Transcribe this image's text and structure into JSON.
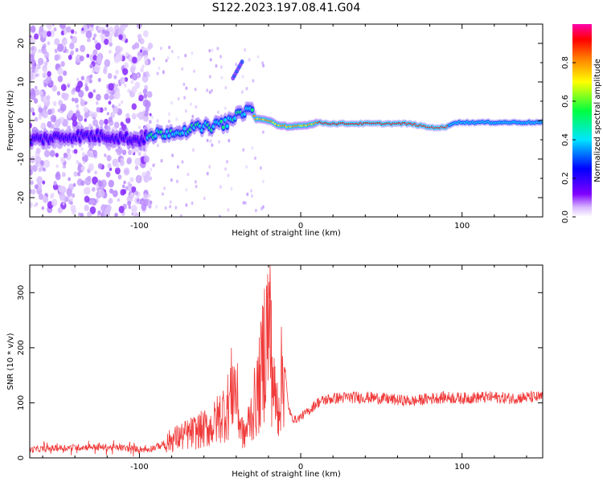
{
  "title": "S122.2023.197.08.41.G04",
  "chart_data": [
    {
      "type": "heatmap",
      "xlabel": "Height of straight line (km)",
      "ylabel": "Frequency (Hz)",
      "xlim": [
        -168,
        150
      ],
      "ylim": [
        -25,
        25
      ],
      "x_ticks": [
        -100,
        0,
        100
      ],
      "y_ticks": [
        -20,
        -10,
        0,
        10,
        20
      ],
      "colorbar": {
        "label": "Normalized spectral amplitude",
        "range": [
          0,
          1
        ],
        "ticks": [
          0.0,
          0.2,
          0.4,
          0.6,
          0.8
        ],
        "colors": [
          "#ffffff",
          "#7f00ff",
          "#0000ff",
          "#00e5ff",
          "#00ff40",
          "#ffff00",
          "#ff8000",
          "#ff0000",
          "#ff00aa"
        ]
      },
      "ridge_points": [
        {
          "x": -168,
          "y": -5
        },
        {
          "x": -140,
          "y": -4
        },
        {
          "x": -120,
          "y": -4
        },
        {
          "x": -100,
          "y": -5
        },
        {
          "x": -90,
          "y": -3.5
        },
        {
          "x": -80,
          "y": -3
        },
        {
          "x": -65,
          "y": -2
        },
        {
          "x": -55,
          "y": -1.5
        },
        {
          "x": -45,
          "y": -0.5
        },
        {
          "x": -38,
          "y": 1.5
        },
        {
          "x": -32,
          "y": 3.5
        },
        {
          "x": -28,
          "y": 0.5
        },
        {
          "x": -20,
          "y": 0
        },
        {
          "x": -12,
          "y": -1.5
        },
        {
          "x": -5,
          "y": -1.5
        },
        {
          "x": 0,
          "y": -1.5
        },
        {
          "x": 5,
          "y": -1
        },
        {
          "x": 10,
          "y": -0.5
        },
        {
          "x": 20,
          "y": -0.8
        },
        {
          "x": 40,
          "y": -0.8
        },
        {
          "x": 65,
          "y": -0.8
        },
        {
          "x": 70,
          "y": -1
        },
        {
          "x": 80,
          "y": -1.8
        },
        {
          "x": 90,
          "y": -1.8
        },
        {
          "x": 95,
          "y": -0.5
        },
        {
          "x": 120,
          "y": -0.5
        },
        {
          "x": 150,
          "y": -0.5
        }
      ]
    },
    {
      "type": "line",
      "xlabel": "Height of straight line (km)",
      "ylabel": "SNR (10 * v/v)",
      "xlim": [
        -168,
        150
      ],
      "ylim": [
        0,
        350
      ],
      "x_ticks": [
        -100,
        0,
        100
      ],
      "y_ticks": [
        0,
        100,
        200,
        300
      ],
      "line_color": "#f03a3a",
      "series": [
        {
          "x": [
            -168,
            -150,
            -130,
            -110,
            -95,
            -85,
            -80,
            -75,
            -70,
            -65,
            -60,
            -55,
            -50,
            -45,
            -42,
            -40,
            -38,
            -35,
            -32,
            -30,
            -27,
            -25,
            -22,
            -20,
            -18,
            -16,
            -14,
            -12,
            -10,
            -8,
            -6,
            -4,
            -2,
            0,
            5,
            10,
            15,
            20,
            30,
            40,
            50,
            60,
            70,
            80,
            90,
            100,
            110,
            120,
            130,
            140,
            150
          ],
          "y": [
            15,
            18,
            20,
            18,
            15,
            25,
            35,
            40,
            45,
            50,
            55,
            60,
            80,
            100,
            140,
            130,
            70,
            40,
            70,
            90,
            120,
            150,
            230,
            260,
            180,
            110,
            100,
            150,
            170,
            100,
            75,
            70,
            70,
            75,
            85,
            100,
            105,
            108,
            110,
            110,
            108,
            105,
            103,
            108,
            110,
            108,
            110,
            110,
            108,
            110,
            110
          ]
        }
      ]
    }
  ]
}
